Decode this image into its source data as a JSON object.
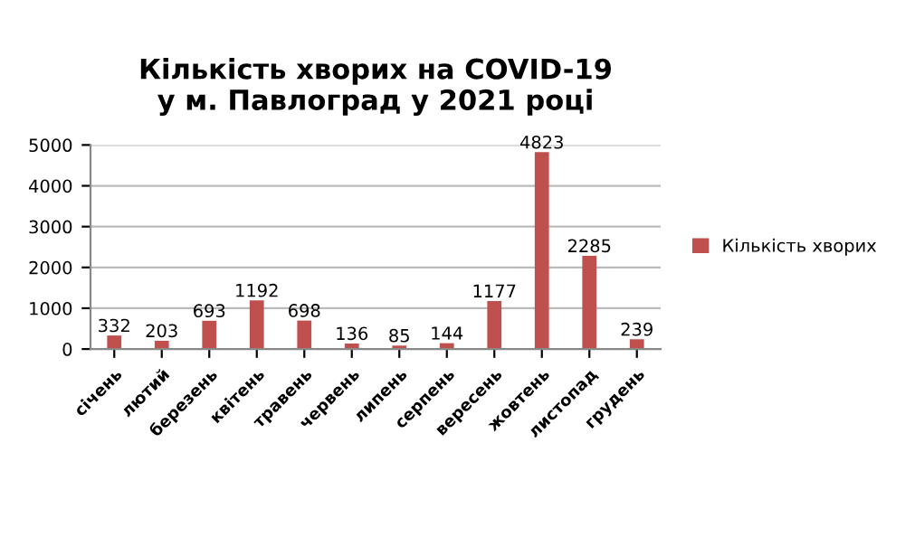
{
  "chart_data": {
    "type": "bar",
    "title": "Кількість хворих на COVID-19\nу м. Павлоград у 2021 році",
    "categories": [
      "січень",
      "лютий",
      "березень",
      "квітень",
      "травень",
      "червень",
      "липень",
      "серпень",
      "вересень",
      "жовтень",
      "листопад",
      "грудень"
    ],
    "series": [
      {
        "name": "Кількість хворих",
        "color": "#c0504d",
        "values": [
          332,
          203,
          693,
          1192,
          698,
          136,
          85,
          144,
          1177,
          4823,
          2285,
          239
        ]
      }
    ],
    "ylim": [
      0,
      5000
    ],
    "yticks": [
      0,
      1000,
      2000,
      3000,
      4000,
      5000
    ],
    "grid": "y",
    "legend": "right",
    "data_labels": true
  }
}
